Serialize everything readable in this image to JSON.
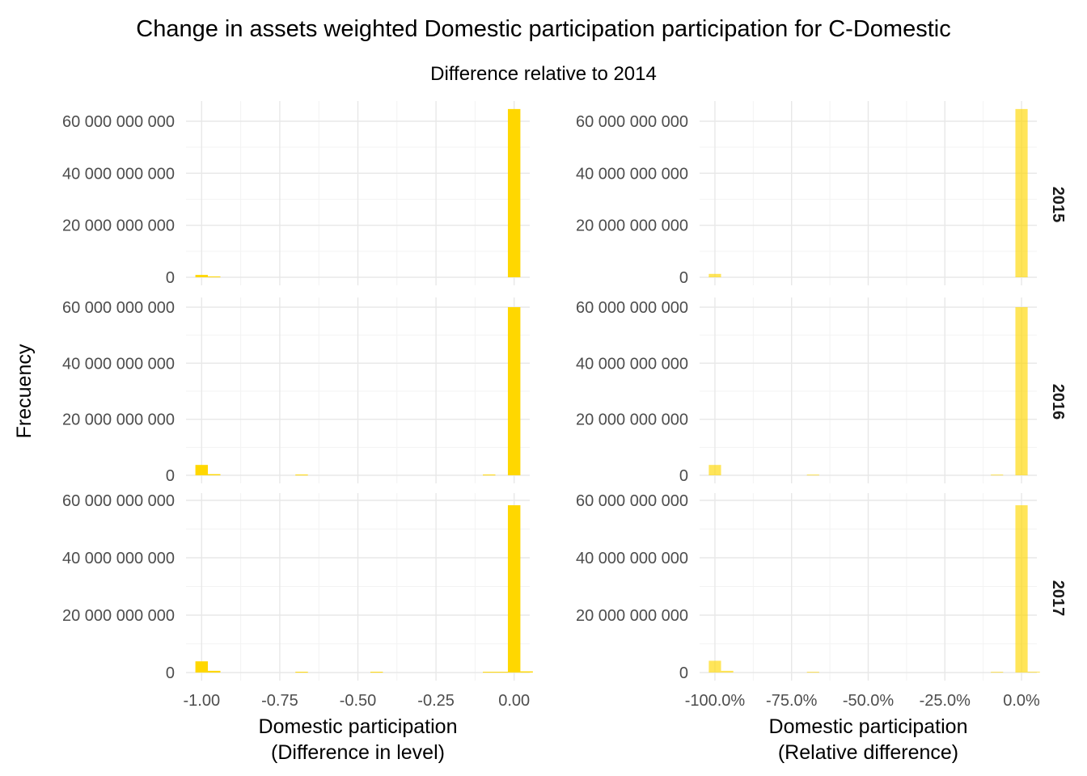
{
  "title": "Change in assets weighted Domestic participation participation for C-Domestic",
  "subtitle": "Difference relative to 2014",
  "ylabel": "Frecuency",
  "bar_color": "#FFD700",
  "columns": [
    {
      "xlabel": [
        "Domestic participation",
        "(Difference in level)"
      ],
      "xticks": [
        "-1.00",
        "-0.75",
        "-0.50",
        "-0.25",
        "0.00"
      ],
      "xtick_values": [
        -1.0,
        -0.75,
        -0.5,
        -0.25,
        0.0
      ],
      "xlim": [
        -1.05,
        0.05
      ],
      "opacity": 1.0
    },
    {
      "xlabel": [
        "Domestic participation",
        "(Relative difference)"
      ],
      "xticks": [
        "-100.0%",
        "-75.0%",
        "-50.0%",
        "-25.0%",
        "0.0%"
      ],
      "xtick_values": [
        -100,
        -75,
        -50,
        -25,
        0
      ],
      "xlim": [
        -105,
        5
      ],
      "opacity": 0.65
    }
  ],
  "rows": [
    {
      "strip": "2015",
      "yticks": [
        "0",
        "20 000 000 000",
        "40 000 000 000",
        "60 000 000 000"
      ],
      "ytick_values": [
        0,
        20000000000,
        40000000000,
        60000000000
      ],
      "ylim": [
        0,
        67000000000
      ]
    },
    {
      "strip": "2016",
      "yticks": [
        "0",
        "20 000 000 000",
        "40 000 000 000",
        "60 000 000 000"
      ],
      "ytick_values": [
        0,
        20000000000,
        40000000000,
        60000000000
      ],
      "ylim": [
        0,
        62000000000
      ]
    },
    {
      "strip": "2017",
      "yticks": [
        "0",
        "20 000 000 000",
        "40 000 000 000",
        "60 000 000 000"
      ],
      "ytick_values": [
        0,
        20000000000,
        40000000000,
        60000000000
      ],
      "ylim": [
        0,
        61500000000
      ]
    }
  ],
  "chart_data": {
    "type": "bar",
    "title": "Change in assets weighted Domestic participation participation for C-Domestic",
    "subtitle": "Difference relative to 2014",
    "ylabel": "Frecuency",
    "facet_rows": [
      "2015",
      "2016",
      "2017"
    ],
    "panels": [
      {
        "row": "2015",
        "column": "Difference in level",
        "bins": [
          {
            "x0": -1.02,
            "x1": -0.98,
            "value": 900000000
          },
          {
            "x0": -0.98,
            "x1": -0.94,
            "value": 300000000
          },
          {
            "x0": -0.02,
            "x1": 0.02,
            "value": 64700000000
          }
        ]
      },
      {
        "row": "2015",
        "column": "Relative difference",
        "bins": [
          {
            "x0": -102,
            "x1": -98,
            "value": 1300000000
          },
          {
            "x0": -2,
            "x1": 2,
            "value": 64700000000
          }
        ]
      },
      {
        "row": "2016",
        "column": "Difference in level",
        "bins": [
          {
            "x0": -1.02,
            "x1": -0.98,
            "value": 3700000000
          },
          {
            "x0": -0.98,
            "x1": -0.94,
            "value": 400000000
          },
          {
            "x0": -0.7,
            "x1": -0.66,
            "value": 250000000
          },
          {
            "x0": -0.1,
            "x1": -0.06,
            "value": 250000000
          },
          {
            "x0": -0.02,
            "x1": 0.02,
            "value": 60000000000
          }
        ]
      },
      {
        "row": "2016",
        "column": "Relative difference",
        "bins": [
          {
            "x0": -102,
            "x1": -98,
            "value": 3700000000
          },
          {
            "x0": -70,
            "x1": -66,
            "value": 250000000
          },
          {
            "x0": -10,
            "x1": -6,
            "value": 250000000
          },
          {
            "x0": -2,
            "x1": 2,
            "value": 60000000000
          }
        ]
      },
      {
        "row": "2017",
        "column": "Difference in level",
        "bins": [
          {
            "x0": -1.02,
            "x1": -0.98,
            "value": 3900000000
          },
          {
            "x0": -0.98,
            "x1": -0.94,
            "value": 600000000
          },
          {
            "x0": -0.7,
            "x1": -0.66,
            "value": 250000000
          },
          {
            "x0": -0.46,
            "x1": -0.42,
            "value": 250000000
          },
          {
            "x0": -0.1,
            "x1": -0.06,
            "value": 250000000
          },
          {
            "x0": -0.06,
            "x1": -0.02,
            "value": 250000000
          },
          {
            "x0": -0.02,
            "x1": 0.02,
            "value": 58300000000
          },
          {
            "x0": 0.02,
            "x1": 0.06,
            "value": 400000000
          }
        ]
      },
      {
        "row": "2017",
        "column": "Relative difference",
        "bins": [
          {
            "x0": -102,
            "x1": -98,
            "value": 4100000000
          },
          {
            "x0": -98,
            "x1": -94,
            "value": 600000000
          },
          {
            "x0": -70,
            "x1": -66,
            "value": 250000000
          },
          {
            "x0": -10,
            "x1": -6,
            "value": 250000000
          },
          {
            "x0": -2,
            "x1": 2,
            "value": 58300000000
          },
          {
            "x0": 2,
            "x1": 6,
            "value": 300000000
          }
        ]
      }
    ],
    "grid": true,
    "legend": "none"
  }
}
